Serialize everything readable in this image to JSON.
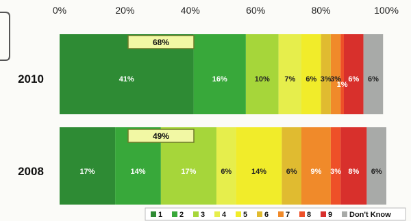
{
  "chart_data": {
    "type": "bar",
    "orientation": "horizontal-stacked",
    "xlim": [
      0,
      100
    ],
    "x_ticks": [
      "0%",
      "20%",
      "40%",
      "60%",
      "80%",
      "100%"
    ],
    "categories": [
      "2010",
      "2008"
    ],
    "rows": [
      {
        "label": "2010",
        "callout": "68%",
        "segments": [
          {
            "key": "1",
            "value": 41,
            "label": "41%"
          },
          {
            "key": "2",
            "value": 16,
            "label": "16%"
          },
          {
            "key": "3",
            "value": 10,
            "label": "10%"
          },
          {
            "key": "4",
            "value": 7,
            "label": "7%"
          },
          {
            "key": "5",
            "value": 6,
            "label": "6%"
          },
          {
            "key": "6",
            "value": 3,
            "label": "3%"
          },
          {
            "key": "7",
            "value": 3,
            "label": "3%"
          },
          {
            "key": "8",
            "value": 1,
            "label": "1%"
          },
          {
            "key": "9",
            "value": 6,
            "label": "6%"
          },
          {
            "key": "dk",
            "value": 6,
            "label": "6%"
          }
        ]
      },
      {
        "label": "2008",
        "callout": "49%",
        "segments": [
          {
            "key": "1",
            "value": 17,
            "label": "17%"
          },
          {
            "key": "2",
            "value": 14,
            "label": "14%"
          },
          {
            "key": "3",
            "value": 17,
            "label": "17%"
          },
          {
            "key": "4",
            "value": 6,
            "label": "6%"
          },
          {
            "key": "5",
            "value": 14,
            "label": "14%"
          },
          {
            "key": "6",
            "value": 6,
            "label": "6%"
          },
          {
            "key": "7",
            "value": 9,
            "label": "9%"
          },
          {
            "key": "8",
            "value": 3,
            "label": "3%"
          },
          {
            "key": "9",
            "value": 8,
            "label": "8%"
          },
          {
            "key": "dk",
            "value": 6,
            "label": "6%"
          }
        ]
      }
    ],
    "legend": [
      {
        "key": "1",
        "label": "1",
        "color": "#2e8b34"
      },
      {
        "key": "2",
        "label": "2",
        "color": "#38a83a"
      },
      {
        "key": "3",
        "label": "3",
        "color": "#a6d63a"
      },
      {
        "key": "4",
        "label": "4",
        "color": "#e6ee4c"
      },
      {
        "key": "5",
        "label": "5",
        "color": "#f1ec2a"
      },
      {
        "key": "6",
        "label": "6",
        "color": "#e0bb30"
      },
      {
        "key": "7",
        "label": "7",
        "color": "#f08a2a"
      },
      {
        "key": "8",
        "label": "8",
        "color": "#ee5028"
      },
      {
        "key": "9",
        "label": "9",
        "color": "#d8302c"
      },
      {
        "key": "dk",
        "label": "Don't Know",
        "color": "#a8aaa8"
      }
    ],
    "legend_position": "bottom-right",
    "grid": false
  }
}
